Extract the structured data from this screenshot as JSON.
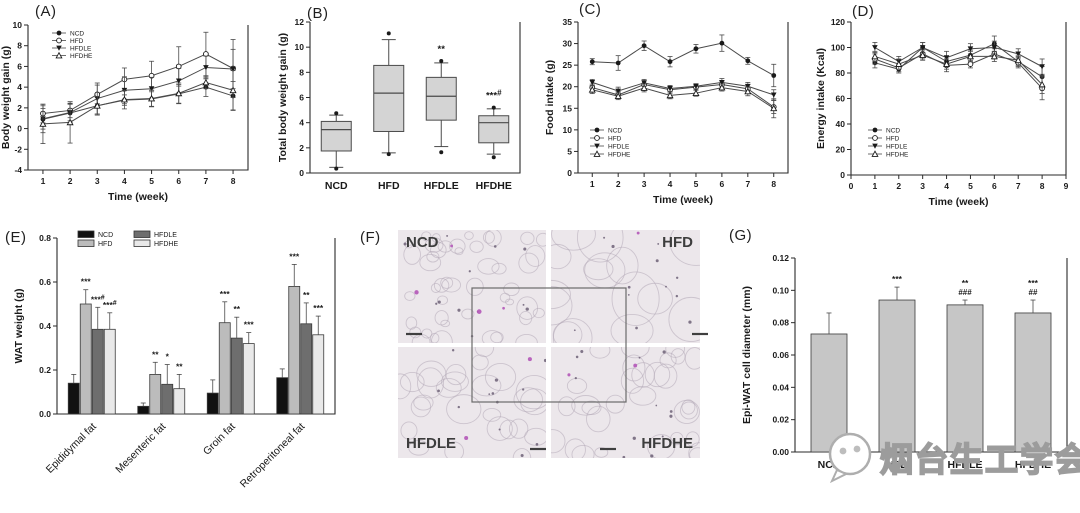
{
  "panel_labels": {
    "A": "(A)",
    "B": "(B)",
    "C": "(C)",
    "D": "(D)",
    "E": "(E)",
    "F": "(F)",
    "G": "(G)"
  },
  "watermark": {
    "icon": "wechat-face-icon",
    "text": "烟台生工学会"
  },
  "histology": {
    "quadrants": [
      {
        "label": "NCD",
        "pos": "top-left"
      },
      {
        "label": "HFD",
        "pos": "top-right"
      },
      {
        "label": "HFDLE",
        "pos": "bottom-left"
      },
      {
        "label": "HFDHE",
        "pos": "bottom-right"
      }
    ]
  },
  "chart_data": [
    {
      "panel": "A",
      "type": "line",
      "title": "",
      "xlabel": "Time (week)",
      "ylabel": "Body weight gain (g)",
      "x": [
        1,
        2,
        3,
        4,
        5,
        6,
        7,
        8
      ],
      "xlim": [
        0.45,
        8.55
      ],
      "ylim": [
        -4,
        10
      ],
      "xticks": [
        1,
        2,
        3,
        4,
        5,
        6,
        7,
        8
      ],
      "yticks": [
        -4,
        -2,
        0,
        2,
        4,
        6,
        8,
        10
      ],
      "ytick_labels": [
        "-4",
        "-2",
        "0",
        "2",
        "4",
        "6",
        "8",
        "10"
      ],
      "legend_position": "top-left",
      "series": [
        {
          "name": "NCD",
          "marker": "circle-filled",
          "values": [
            0.9,
            1.5,
            2.2,
            2.75,
            2.85,
            3.35,
            4.0,
            3.15
          ],
          "err": [
            1.3,
            0.9,
            0.8,
            0.5,
            0.7,
            0.9,
            0.9,
            1.4
          ]
        },
        {
          "name": "HFD",
          "marker": "circle-open",
          "values": [
            1.45,
            1.75,
            3.3,
            4.75,
            5.1,
            6.0,
            7.2,
            5.8
          ],
          "err": [
            0.9,
            0.7,
            0.9,
            1.1,
            1.4,
            1.9,
            2.1,
            2.8
          ]
        },
        {
          "name": "HFDLE",
          "marker": "triangle-down-filled",
          "values": [
            0.95,
            1.55,
            2.9,
            3.7,
            3.85,
            4.6,
            5.9,
            5.75
          ],
          "err": [
            1.0,
            0.8,
            1.5,
            1.3,
            1.1,
            1.2,
            1.1,
            1.9
          ]
        },
        {
          "name": "HFDHE",
          "marker": "triangle-up-open",
          "values": [
            0.45,
            0.6,
            2.2,
            2.8,
            2.9,
            3.4,
            4.45,
            3.7
          ],
          "err": [
            1.9,
            2.0,
            0.9,
            0.9,
            0.8,
            1.0,
            0.6,
            1.9
          ]
        }
      ]
    },
    {
      "panel": "B",
      "type": "box",
      "title": "",
      "xlabel": "",
      "ylabel": "Total body weight gain (g)",
      "categories": [
        "NCD",
        "HFD",
        "HFDLE",
        "HFDHE"
      ],
      "ylim": [
        0,
        12
      ],
      "yticks": [
        0,
        2,
        4,
        6,
        8,
        10,
        12
      ],
      "ytick_labels": [
        "0",
        "2",
        "4",
        "6",
        "8",
        "10",
        "12"
      ],
      "boxes": [
        {
          "q1": 1.75,
          "median": 3.45,
          "q3": 4.1,
          "whisker_low": 0.45,
          "whisker_high": 4.6,
          "outliers": [
            4.75,
            0.35
          ],
          "annotation": ""
        },
        {
          "q1": 3.3,
          "median": 6.35,
          "q3": 8.55,
          "whisker_low": 1.6,
          "whisker_high": 10.6,
          "outliers": [
            11.1,
            1.5
          ],
          "annotation": ""
        },
        {
          "q1": 4.2,
          "median": 6.1,
          "q3": 7.6,
          "whisker_low": 2.1,
          "whisker_high": 8.75,
          "outliers": [
            8.9,
            1.65
          ],
          "annotation": "**"
        },
        {
          "q1": 2.4,
          "median": 4.0,
          "q3": 4.55,
          "whisker_low": 1.5,
          "whisker_high": 5.1,
          "outliers": [
            5.2,
            1.25
          ],
          "annotation": "***#"
        }
      ]
    },
    {
      "panel": "C",
      "type": "line",
      "title": "",
      "xlabel": "Time (week)",
      "ylabel": "Food intake (g)",
      "x": [
        1,
        2,
        3,
        4,
        5,
        6,
        7,
        8
      ],
      "xlim": [
        0.45,
        8.55
      ],
      "ylim": [
        0,
        35
      ],
      "xticks": [
        1,
        2,
        3,
        4,
        5,
        6,
        7,
        8
      ],
      "yticks": [
        0,
        5,
        10,
        15,
        20,
        25,
        30,
        35
      ],
      "ytick_labels": [
        "0",
        "5",
        "10",
        "15",
        "20",
        "25",
        "30",
        "35"
      ],
      "legend_position": "bottom-left",
      "series": [
        {
          "name": "NCD",
          "marker": "circle-filled",
          "values": [
            25.8,
            25.5,
            29.5,
            25.8,
            28.8,
            30.1,
            26.0,
            22.6
          ],
          "err": [
            0.7,
            1.7,
            1.1,
            1.2,
            1.0,
            1.9,
            0.8,
            2.6
          ]
        },
        {
          "name": "HFD",
          "marker": "circle-open",
          "values": [
            19.8,
            18.1,
            20.5,
            19.3,
            19.9,
            20.5,
            19.5,
            15.3
          ],
          "err": [
            0.8,
            0.8,
            0.9,
            0.8,
            0.7,
            0.8,
            1.0,
            1.5
          ]
        },
        {
          "name": "HFDLE",
          "marker": "triangle-down-filled",
          "values": [
            21.0,
            19.0,
            20.9,
            19.6,
            20.1,
            21.0,
            20.1,
            18.1
          ],
          "err": [
            0.7,
            0.9,
            0.8,
            0.7,
            0.6,
            0.9,
            0.9,
            1.2
          ]
        },
        {
          "name": "HFDHE",
          "marker": "triangle-up-open",
          "values": [
            19.3,
            17.8,
            19.7,
            18.0,
            18.5,
            19.8,
            18.9,
            15.0
          ],
          "err": [
            0.9,
            0.8,
            0.9,
            0.8,
            0.7,
            0.8,
            1.0,
            2.2
          ]
        }
      ]
    },
    {
      "panel": "D",
      "type": "line",
      "title": "",
      "xlabel": "Time (week)",
      "ylabel": "Energy intake (Kcal)",
      "x": [
        1,
        2,
        3,
        4,
        5,
        6,
        7,
        8
      ],
      "xlim": [
        0,
        9
      ],
      "ylim": [
        0,
        120
      ],
      "xticks": [
        0,
        1,
        2,
        3,
        4,
        5,
        6,
        7,
        8,
        9
      ],
      "yticks": [
        0,
        20,
        40,
        60,
        80,
        100,
        120
      ],
      "ytick_labels": [
        "0",
        "20",
        "40",
        "60",
        "80",
        "100",
        "120"
      ],
      "legend_position": "bottom-left",
      "series": [
        {
          "name": "NCD",
          "marker": "circle-filled",
          "values": [
            88,
            83,
            100,
            89,
            94,
            103,
            89,
            77
          ],
          "err": [
            4,
            3,
            4,
            4,
            4,
            6,
            4,
            8
          ]
        },
        {
          "name": "HFD",
          "marker": "circle-open",
          "values": [
            91,
            84,
            95,
            86,
            87,
            95,
            88,
            68
          ],
          "err": [
            4,
            3,
            4,
            5,
            3,
            4,
            4,
            9
          ]
        },
        {
          "name": "HFDLE",
          "marker": "triangle-down-filled",
          "values": [
            100,
            89,
            100,
            92,
            99,
            100,
            95,
            85
          ],
          "err": [
            4,
            4,
            4,
            5,
            4,
            5,
            4,
            6
          ]
        },
        {
          "name": "HFDHE",
          "marker": "triangle-up-open",
          "values": [
            93,
            87,
            94,
            87,
            93,
            93,
            90,
            71
          ],
          "err": [
            4,
            4,
            4,
            4,
            4,
            4,
            4,
            7
          ]
        }
      ]
    },
    {
      "panel": "E",
      "type": "bar",
      "title": "",
      "xlabel": "",
      "ylabel": "WAT weight (g)",
      "categories": [
        "Epididymal fat",
        "Mesenteric fat",
        "Groin fat",
        "Retroperitoneal fat"
      ],
      "ylim": [
        0,
        0.8
      ],
      "yticks": [
        0,
        0.2,
        0.4,
        0.6,
        0.8
      ],
      "ytick_labels": [
        "0.0",
        "0.2",
        "0.4",
        "0.6",
        "0.8"
      ],
      "rotate_xlabels": 45,
      "legend_position": "top-left",
      "series": [
        {
          "name": "NCD",
          "color": "#111111",
          "values": [
            0.14,
            0.035,
            0.095,
            0.165
          ],
          "err": [
            0.04,
            0.015,
            0.06,
            0.04
          ],
          "annotations": [
            "",
            "",
            "",
            ""
          ]
        },
        {
          "name": "HFD",
          "color": "#bcbcbc",
          "values": [
            0.5,
            0.18,
            0.415,
            0.58
          ],
          "err": [
            0.065,
            0.055,
            0.095,
            0.1
          ],
          "annotations": [
            "***",
            "**",
            "***",
            "***"
          ]
        },
        {
          "name": "HFDLE",
          "color": "#6e6e6e",
          "values": [
            0.385,
            0.135,
            0.345,
            0.41
          ],
          "err": [
            0.1,
            0.09,
            0.095,
            0.095
          ],
          "annotations": [
            "***#",
            "*",
            "**",
            "**"
          ]
        },
        {
          "name": "HFDHE",
          "color": "#e9e9e9",
          "values": [
            0.385,
            0.115,
            0.32,
            0.36
          ],
          "err": [
            0.075,
            0.065,
            0.05,
            0.085
          ],
          "annotations": [
            "***#",
            "**",
            "***",
            "***"
          ]
        }
      ]
    },
    {
      "panel": "G",
      "type": "bar",
      "title": "",
      "xlabel": "",
      "ylabel": "Epi-WAT cell diameter (mm)",
      "categories": [
        "NCD",
        "HFD",
        "HFDLE",
        "HFDHE"
      ],
      "ylim": [
        0,
        0.12
      ],
      "yticks": [
        0,
        0.02,
        0.04,
        0.06,
        0.08,
        0.1,
        0.12
      ],
      "ytick_labels": [
        "0.00",
        "0.02",
        "0.04",
        "0.06",
        "0.08",
        "0.10",
        "0.12"
      ],
      "series": [
        {
          "name": "Epi-WAT",
          "color": "#c6c6c6",
          "values": [
            0.073,
            0.094,
            0.091,
            0.086
          ],
          "err": [
            0.013,
            0.008,
            0.003,
            0.008
          ],
          "annotations": [
            "",
            "***",
            "**|###",
            "***|##"
          ]
        }
      ]
    }
  ]
}
